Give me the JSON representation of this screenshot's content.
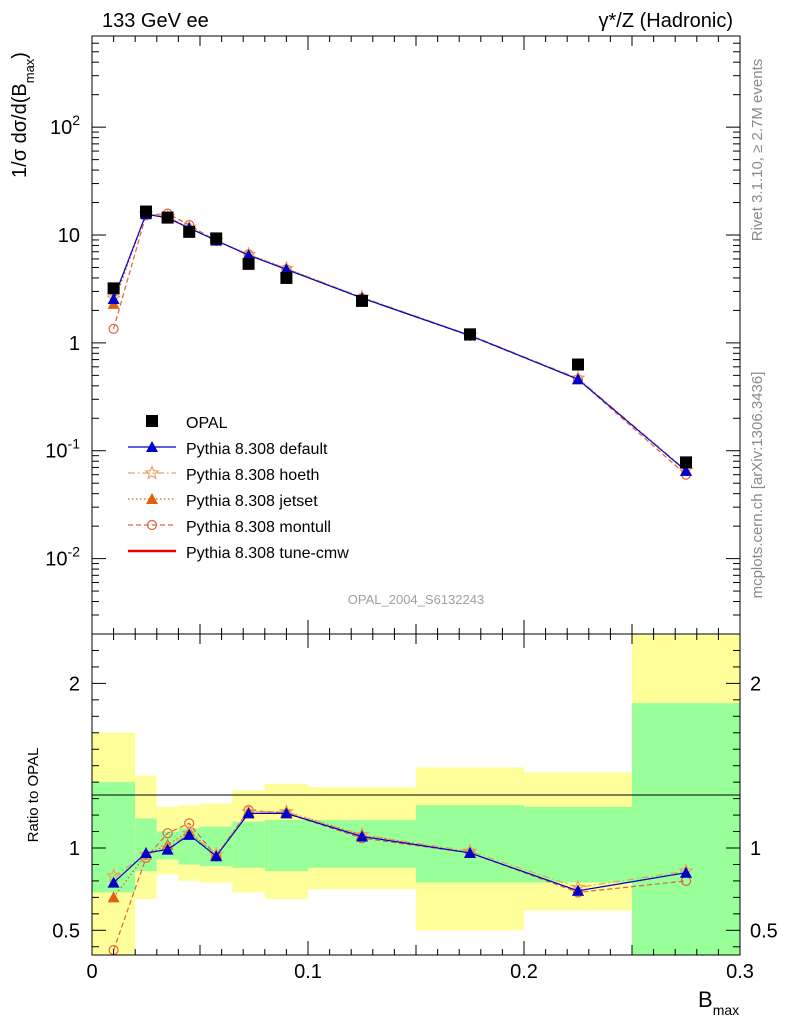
{
  "header": {
    "left": "133 GeV ee",
    "right": "γ*/Z (Hadronic)"
  },
  "side_labels": {
    "rivet": "Rivet 3.1.10, ≥ 2.7M events",
    "mcplots": "mcplots.cern.ch [arXiv:1306.3436]"
  },
  "watermark": "OPAL_2004_S6132243",
  "chart_data": {
    "type": "line",
    "xlabel": "B_max",
    "x_ticks": [
      "0",
      "0.1",
      "0.2",
      "0.3"
    ],
    "xlim": [
      0,
      0.3
    ],
    "main": {
      "ylabel": "1/σ dσ/d(B_max)",
      "scale": "log",
      "ylim": [
        0.002,
        700
      ],
      "y_ticks": [
        "10^-2",
        "10^-1",
        "1",
        "10",
        "10^2"
      ],
      "legend_position": "bottom-left"
    },
    "ratio": {
      "ylabel": "Ratio to OPAL",
      "ylim": [
        0.35,
        2.3
      ],
      "y_ticks": [
        "0.5",
        "1",
        "2"
      ],
      "reference_line": 1
    },
    "x": [
      0.01,
      0.025,
      0.035,
      0.045,
      0.0575,
      0.0725,
      0.09,
      0.125,
      0.175,
      0.225,
      0.275
    ],
    "bins": [
      [
        0.0,
        0.02
      ],
      [
        0.02,
        0.03
      ],
      [
        0.03,
        0.04
      ],
      [
        0.04,
        0.05
      ],
      [
        0.05,
        0.065
      ],
      [
        0.065,
        0.08
      ],
      [
        0.08,
        0.1
      ],
      [
        0.1,
        0.15
      ],
      [
        0.15,
        0.2
      ],
      [
        0.2,
        0.25
      ],
      [
        0.25,
        0.3
      ]
    ],
    "band_inner": [
      [
        0.73,
        1.4
      ],
      [
        0.86,
        1.18
      ],
      [
        0.93,
        1.1
      ],
      [
        0.9,
        1.12
      ],
      [
        0.89,
        1.13
      ],
      [
        0.88,
        1.16
      ],
      [
        0.86,
        1.17
      ],
      [
        0.88,
        1.17
      ],
      [
        0.79,
        1.26
      ],
      [
        0.79,
        1.25
      ],
      [
        0.35,
        1.88
      ]
    ],
    "band_outer": [
      [
        0.35,
        1.7
      ],
      [
        0.69,
        1.44
      ],
      [
        0.84,
        1.25
      ],
      [
        0.8,
        1.26
      ],
      [
        0.79,
        1.27
      ],
      [
        0.73,
        1.35
      ],
      [
        0.69,
        1.39
      ],
      [
        0.75,
        1.37
      ],
      [
        0.5,
        1.49
      ],
      [
        0.62,
        1.46
      ],
      [
        0.35,
        2.3
      ]
    ],
    "opal": [
      3.2,
      16.5,
      14.5,
      10.7,
      9.3,
      5.4,
      4.0,
      2.45,
      1.2,
      0.63,
      0.078
    ],
    "series": [
      {
        "name": "OPAL",
        "color": "#000000",
        "marker": "square",
        "style": "none"
      },
      {
        "name": "Pythia 8.308 default",
        "color": "#0000cc",
        "marker": "triangle",
        "style": "solid",
        "values": [
          2.55,
          15.6,
          14.4,
          11.6,
          8.9,
          6.5,
          4.8,
          2.6,
          1.17,
          0.46,
          0.065
        ],
        "ratio": [
          0.79,
          0.97,
          0.99,
          1.08,
          0.95,
          1.21,
          1.21,
          1.07,
          0.97,
          0.74,
          0.85
        ]
      },
      {
        "name": "Pythia 8.308 hoeth",
        "color": "#e8a060",
        "marker": "star",
        "style": "dashdot",
        "values": [
          2.6,
          15.7,
          14.7,
          11.8,
          8.9,
          6.6,
          4.9,
          2.65,
          1.18,
          0.47,
          0.066
        ],
        "ratio": [
          0.83,
          0.96,
          1.0,
          1.09,
          0.96,
          1.22,
          1.22,
          1.08,
          0.98,
          0.76,
          0.86
        ]
      },
      {
        "name": "Pythia 8.308 jetset",
        "color": "#e06010",
        "marker": "triangle",
        "style": "dotted",
        "values": [
          2.3,
          15.8,
          14.6,
          11.7,
          8.9,
          6.6,
          4.9,
          2.63,
          1.17,
          0.46,
          0.065
        ],
        "ratio": [
          0.7,
          0.96,
          1.02,
          1.1,
          0.96,
          1.22,
          1.22,
          1.08,
          0.97,
          0.74,
          0.85
        ]
      },
      {
        "name": "Pythia 8.308 montull",
        "color": "#e06040",
        "marker": "circle",
        "style": "dashed",
        "values": [
          1.35,
          15.3,
          15.8,
          12.4,
          8.8,
          6.6,
          4.8,
          2.6,
          1.16,
          0.46,
          0.06
        ],
        "ratio": [
          0.38,
          0.94,
          1.09,
          1.15,
          0.95,
          1.23,
          1.21,
          1.06,
          0.97,
          0.73,
          0.8
        ]
      },
      {
        "name": "Pythia 8.308 tune-cmw",
        "color": "#ee0000",
        "marker": "none",
        "style": "solid-thick",
        "values": [
          2.65,
          15.5,
          14.5,
          11.7,
          8.9,
          6.5,
          4.8,
          2.6,
          1.17,
          0.46,
          0.066
        ],
        "ratio": [
          0.83,
          0.96,
          1.0,
          1.09,
          0.95,
          1.21,
          1.2,
          1.07,
          0.97,
          0.74,
          0.84
        ]
      }
    ]
  }
}
